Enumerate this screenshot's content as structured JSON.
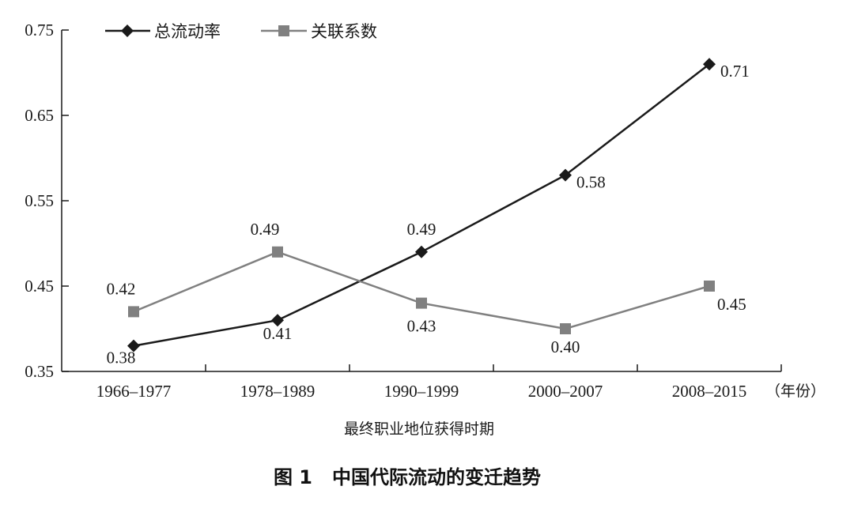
{
  "chart_data": {
    "type": "line",
    "categories": [
      "1966–1977",
      "1978–1989",
      "1990–1999",
      "2000–2007",
      "2008–2015"
    ],
    "series": [
      {
        "name": "总流动率",
        "values": [
          0.38,
          0.41,
          0.49,
          0.58,
          0.71
        ],
        "labels": [
          "0.38",
          "0.41",
          "0.49",
          "0.58",
          "0.71"
        ],
        "color": "#1a1a1a",
        "marker": "diamond"
      },
      {
        "name": "关联系数",
        "values": [
          0.42,
          0.49,
          0.43,
          0.4,
          0.45
        ],
        "labels": [
          "0.42",
          "0.49",
          "0.43",
          "0.40",
          "0.45"
        ],
        "color": "#808080",
        "marker": "square"
      }
    ],
    "ylim": [
      0.35,
      0.75
    ],
    "yticks": [
      "0.35",
      "0.45",
      "0.55",
      "0.65",
      "0.75"
    ],
    "xlabel": "最终职业地位获得时期",
    "x_unit": "（年份）",
    "ylabel": "",
    "legend": "top-left",
    "grid": false
  },
  "caption": {
    "figure_number": "图 1",
    "title": "中国代际流动的变迁趋势"
  }
}
